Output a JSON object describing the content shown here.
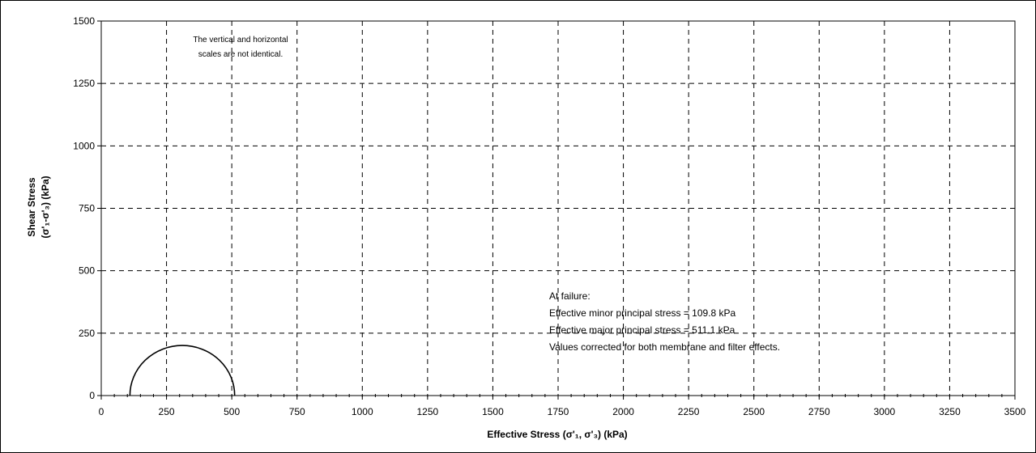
{
  "chart_data": {
    "type": "line",
    "title": "",
    "xlabel": "Effective Stress (σ'₁, σ'₃) (kPa)",
    "ylabel_line1": "Shear Stress",
    "ylabel_line2": "(σ'₁-σ'₃)  (kPa)",
    "xlim": [
      0,
      3500
    ],
    "ylim": [
      0,
      1500
    ],
    "x_ticks": [
      0,
      250,
      500,
      750,
      1000,
      1250,
      1500,
      1750,
      2000,
      2250,
      2500,
      2750,
      3000,
      3250,
      3500
    ],
    "y_ticks": [
      0,
      250,
      500,
      750,
      1000,
      1250,
      1500
    ],
    "grid": true,
    "grid_style": "dashed",
    "scale_note": [
      "The vertical and horizontal",
      "scales are not identical."
    ],
    "failure_note": [
      "At failure:",
      "Effective minor principal stress = 109.8 kPa",
      "Effective major principal  stress = 511.1 kPa",
      "Values corrected for both membrane and filter effects."
    ],
    "mohr_circle": {
      "sigma3": 109.8,
      "sigma1": 511.1,
      "color": "#000000"
    }
  }
}
